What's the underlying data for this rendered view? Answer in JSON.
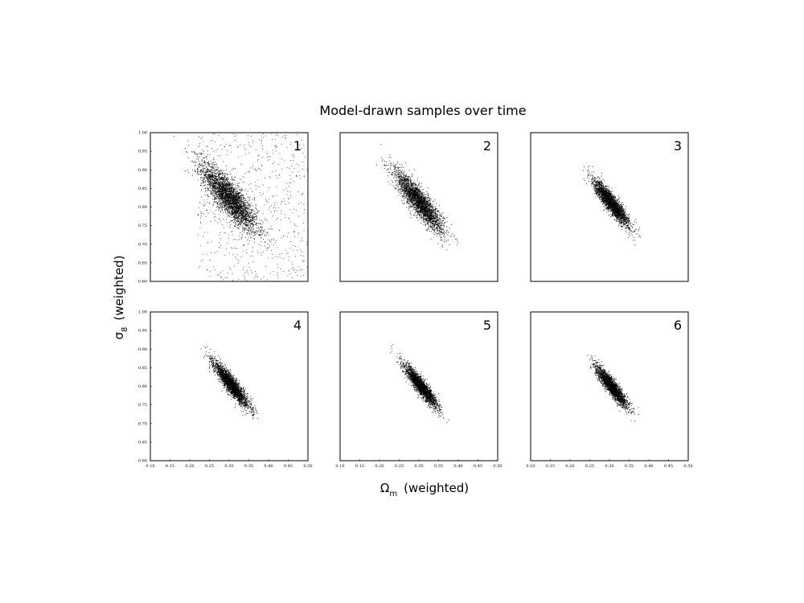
{
  "chart_data": {
    "type": "scatter",
    "title": "Model-drawn samples over time",
    "xlabel": {
      "symbol": "Ω",
      "subscript": "m",
      "suffix": "(weighted)"
    },
    "ylabel": {
      "symbol": "σ",
      "subscript": "8",
      "suffix": "(weighted)"
    },
    "xlim": [
      0.1,
      0.5
    ],
    "ylim": [
      0.6,
      1.0
    ],
    "x_ticks": [
      "0.10",
      "0.15",
      "0.20",
      "0.25",
      "0.30",
      "0.35",
      "0.40",
      "0.45",
      "0.50"
    ],
    "y_ticks": [
      "0.60",
      "0.65",
      "0.70",
      "0.75",
      "0.80",
      "0.85",
      "0.90",
      "0.95",
      "1.00"
    ],
    "grid": false,
    "layout": "2 rows x 3 columns, shared axes",
    "panels": [
      {
        "label": "1",
        "center": [
          0.3,
          0.825
        ],
        "sd_x": 0.035,
        "sd_y": 0.045,
        "corr": -0.85,
        "n": 3200,
        "background_n": 650
      },
      {
        "label": "2",
        "center": [
          0.3,
          0.815
        ],
        "sd_x": 0.03,
        "sd_y": 0.04,
        "corr": -0.88,
        "n": 2800,
        "background_n": 0
      },
      {
        "label": "3",
        "center": [
          0.305,
          0.81
        ],
        "sd_x": 0.022,
        "sd_y": 0.03,
        "corr": -0.9,
        "n": 2600,
        "background_n": 0
      },
      {
        "label": "4",
        "center": [
          0.305,
          0.805
        ],
        "sd_x": 0.022,
        "sd_y": 0.03,
        "corr": -0.91,
        "n": 2600,
        "background_n": 0
      },
      {
        "label": "5",
        "center": [
          0.305,
          0.8
        ],
        "sd_x": 0.021,
        "sd_y": 0.028,
        "corr": -0.91,
        "n": 2400,
        "background_n": 0
      },
      {
        "label": "6",
        "center": [
          0.305,
          0.8
        ],
        "sd_x": 0.02,
        "sd_y": 0.027,
        "corr": -0.91,
        "n": 2400,
        "background_n": 0
      }
    ]
  }
}
